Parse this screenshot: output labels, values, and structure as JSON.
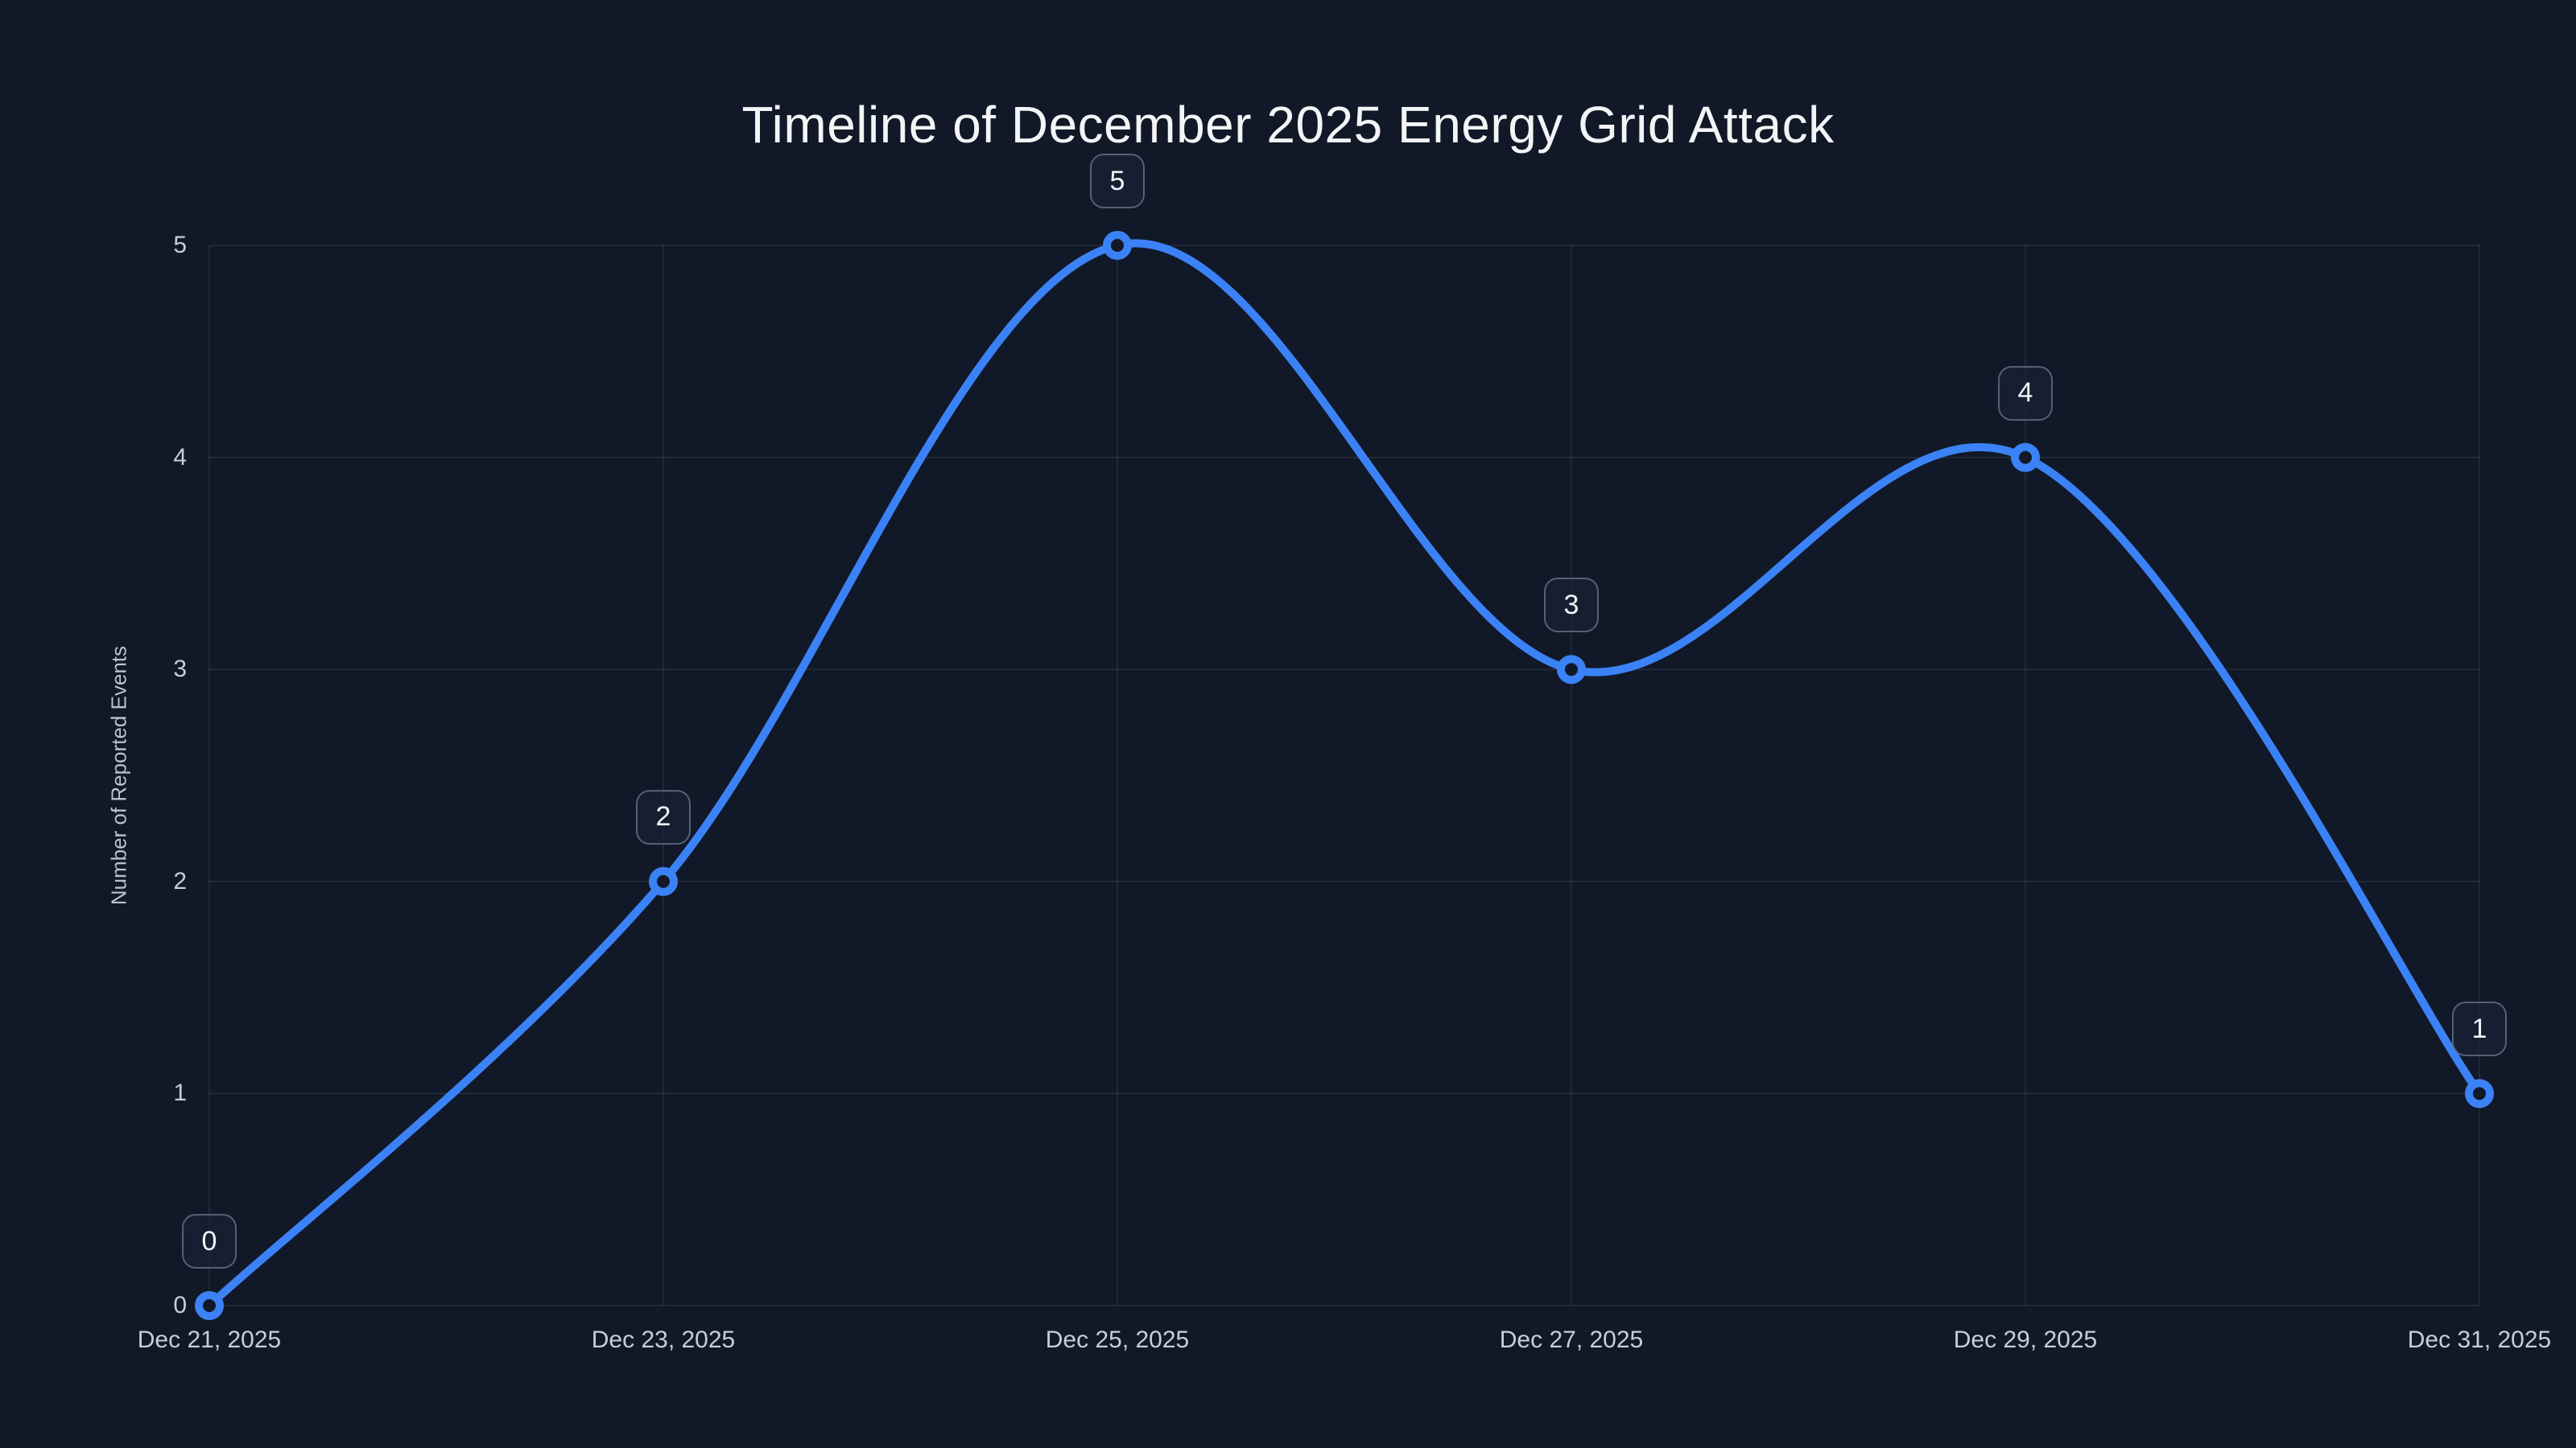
{
  "chart_data": {
    "type": "line",
    "title": "Timeline of December 2025 Energy Grid Attack",
    "x": [
      "Dec 21, 2025",
      "Dec 23, 2025",
      "Dec 25, 2025",
      "Dec 27, 2025",
      "Dec 29, 2025",
      "Dec 31, 2025"
    ],
    "values": [
      0,
      2,
      5,
      3,
      4,
      1
    ],
    "point_labels": [
      "0",
      "2",
      "5",
      "3",
      "4",
      "1"
    ],
    "xlabel": "",
    "ylabel": "Number of Reported Events",
    "ylim": [
      0,
      5
    ],
    "yticks": [
      0,
      1,
      2,
      3,
      4,
      5
    ],
    "line_shape": "spline",
    "grid": true,
    "legend_position": "none",
    "colors": {
      "background": "#111827",
      "line": "#3B82F6",
      "marker_ring": "#3B82F6",
      "marker_fill": "#111827",
      "grid": "rgba(148,163,184,0.16)",
      "tick_text": "#C6CEDC",
      "title_text": "#F3F4F6",
      "badge_border": "rgba(148,163,184,0.5)",
      "badge_fill": "rgba(24,33,52,0.78)"
    }
  }
}
